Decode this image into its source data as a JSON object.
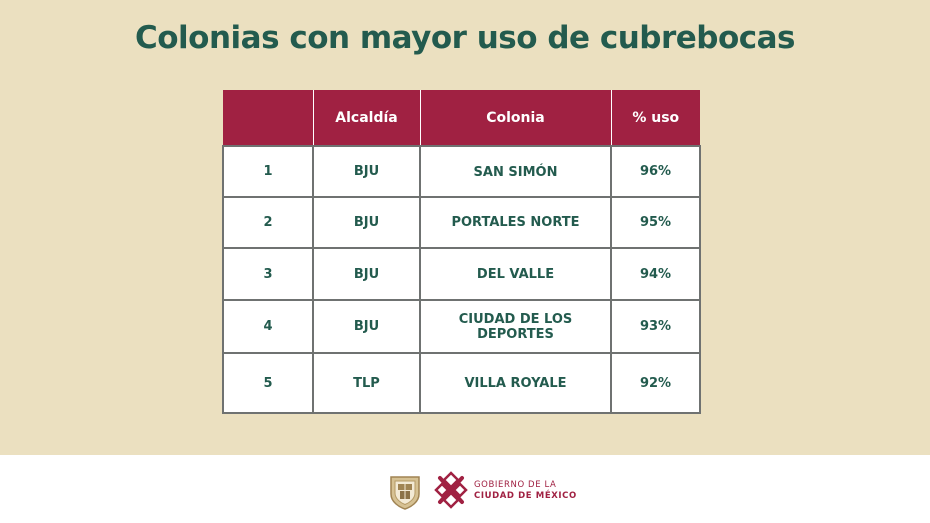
{
  "title": "Colonias con mayor uso de cubrebocas",
  "table": {
    "headers": [
      "",
      "Alcaldía",
      "Colonia",
      "% uso"
    ],
    "rows": [
      {
        "rank": "1",
        "alcaldia": "BJU",
        "colonia": "SAN SIMÓN",
        "uso": "96%"
      },
      {
        "rank": "2",
        "alcaldia": "BJU",
        "colonia": "PORTALES NORTE",
        "uso": "95%"
      },
      {
        "rank": "3",
        "alcaldia": "BJU",
        "colonia": "DEL VALLE",
        "uso": "94%"
      },
      {
        "rank": "4",
        "alcaldia": "BJU",
        "colonia_line1": "CIUDAD DE LOS",
        "colonia_line2": "DEPORTES",
        "uso": "93%"
      },
      {
        "rank": "5",
        "alcaldia": "TLP",
        "colonia": "VILLA ROYALE",
        "uso": "92%"
      }
    ]
  },
  "footer": {
    "gov_line1": "GOBIERNO DE LA",
    "gov_line2": "CIUDAD DE MÉXICO",
    "shield_icon": "escudo-cdmx-icon",
    "logo_icon": "cdmx-logo-icon"
  },
  "colors": {
    "background": "#ebe0c0",
    "header": "#a02142",
    "text": "#235b4e"
  }
}
